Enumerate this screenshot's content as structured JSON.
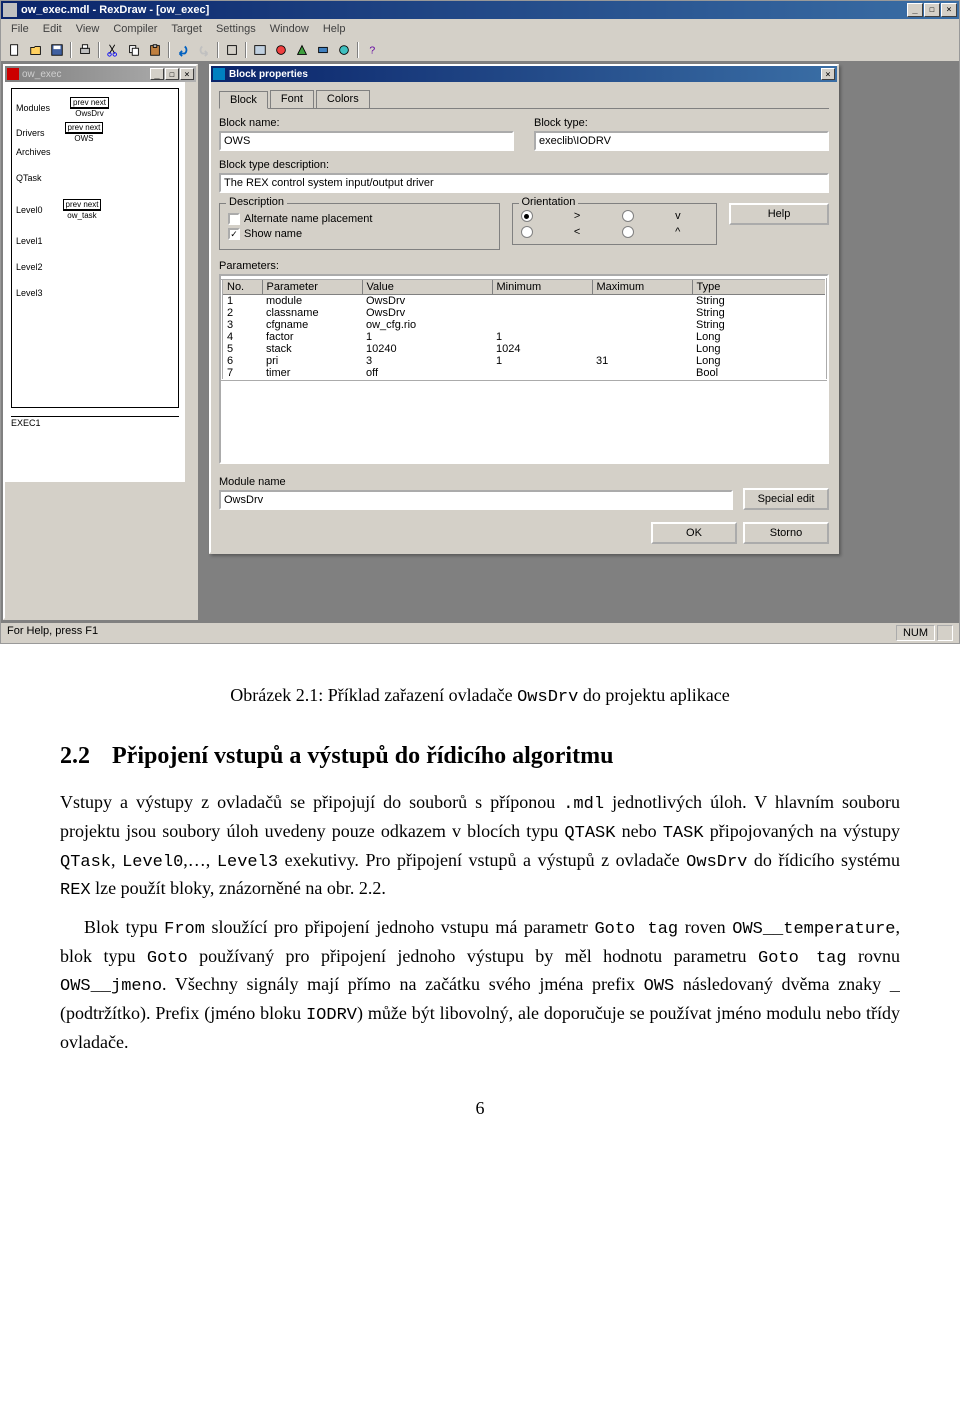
{
  "app": {
    "title": "ow_exec.mdl - RexDraw - [ow_exec]",
    "menus": [
      "File",
      "Edit",
      "View",
      "Compiler",
      "Target",
      "Settings",
      "Window",
      "Help"
    ],
    "statusbar_left": "For Help, press F1",
    "statusbar_right": "NUM"
  },
  "mdi": {
    "title": "ow_exec",
    "diagram": {
      "ports": [
        "Modules",
        "Drivers",
        "Archives",
        "QTask",
        "Level0",
        "Level1",
        "Level2",
        "Level3"
      ],
      "conn1_label1": "prev  next",
      "conn1_label2": "OwsDrv",
      "conn2_label1": "prev  next",
      "conn2_label2": "OWS",
      "conn3_label1": "prev  next",
      "conn3_label2": "ow_task",
      "exec": "EXEC1"
    }
  },
  "dialog": {
    "title": "Block properties",
    "tabs": [
      "Block",
      "Font",
      "Colors"
    ],
    "labels": {
      "block_name": "Block name:",
      "block_type": "Block type:",
      "block_type_desc": "Block type description:",
      "description": "Description",
      "orientation": "Orientation",
      "parameters": "Parameters:",
      "module_name": "Module name",
      "alt_name": "Alternate name placement",
      "show_name": "Show name",
      "help": "Help",
      "special_edit": "Special edit",
      "ok": "OK",
      "storno": "Storno"
    },
    "values": {
      "block_name": "OWS",
      "block_type": "execlib\\IODRV",
      "description": "The REX control system input/output driver",
      "module_name": "OwsDrv",
      "alt_name_checked": false,
      "show_name_checked": true
    },
    "orient": {
      "gt": ">",
      "lt": "<",
      "v": "v",
      "caret": "^"
    },
    "param_headers": [
      "No.",
      "Parameter",
      "Value",
      "Minimum",
      "Maximum",
      "Type"
    ],
    "params": [
      {
        "no": "1",
        "param": "module",
        "value": "OwsDrv",
        "min": "",
        "max": "",
        "type": "String"
      },
      {
        "no": "2",
        "param": "classname",
        "value": "OwsDrv",
        "min": "",
        "max": "",
        "type": "String"
      },
      {
        "no": "3",
        "param": "cfgname",
        "value": "ow_cfg.rio",
        "min": "",
        "max": "",
        "type": "String"
      },
      {
        "no": "4",
        "param": "factor",
        "value": "1",
        "min": "1",
        "max": "",
        "type": "Long"
      },
      {
        "no": "5",
        "param": "stack",
        "value": "10240",
        "min": "1024",
        "max": "",
        "type": "Long"
      },
      {
        "no": "6",
        "param": "pri",
        "value": "3",
        "min": "1",
        "max": "31",
        "type": "Long"
      },
      {
        "no": "7",
        "param": "timer",
        "value": "off",
        "min": "",
        "max": "",
        "type": "Bool"
      }
    ]
  },
  "doc": {
    "caption_a": "Obrázek 2.1: Příklad zařazení ovladače ",
    "caption_b": "OwsDrv",
    "caption_c": " do projektu aplikace",
    "section_num": "2.2",
    "section_title": "Připojení vstupů a výstupů do řídicího algoritmu",
    "p1_a": "Vstupy a výstupy z ovladačů se připojují do souborů s příponou ",
    "p1_b": ".mdl",
    "p1_c": " jednotlivých úloh. V hlavním souboru projektu jsou soubory úloh uvedeny pouze odkazem v blocích typu ",
    "p1_d": "QTASK",
    "p1_e": " nebo ",
    "p1_f": "TASK",
    "p1_g": " připojovaných na výstupy ",
    "p1_h": "QTask",
    "p1_i": ", ",
    "p1_j": "Level0",
    "p1_k": ",…, ",
    "p1_l": "Level3",
    "p1_m": " exekutivy. Pro připojení vstupů a výstupů z ovladače ",
    "p1_n": "OwsDrv",
    "p1_o": " do řídicího systému ",
    "p1_p": "REX",
    "p1_q": " lze použít bloky, znázorněné na obr. 2.2.",
    "p2_a": "Blok typu ",
    "p2_b": "From",
    "p2_c": " sloužící pro připojení jednoho vstupu má parametr ",
    "p2_d": "Goto tag",
    "p2_e": " roven ",
    "p2_f": "OWS__temperature",
    "p2_g": ", blok typu ",
    "p2_h": "Goto",
    "p2_i": " používaný pro připojení jednoho výstupu by měl hodnotu parametru ",
    "p2_j": "Goto tag",
    "p2_k": " rovnu ",
    "p2_l": "OWS__jmeno",
    "p2_m": ". Všechny signály mají přímo na začátku svého jména prefix ",
    "p2_n": "OWS",
    "p2_o": " následovaný dvěma znaky ",
    "p2_p": "_",
    "p2_q": " (podtržítko). Prefix (jméno bloku ",
    "p2_r": "IODRV",
    "p2_s": ") může být libovolný, ale doporučuje se používat jméno modulu nebo třídy ovladače.",
    "pagenum": "6"
  }
}
